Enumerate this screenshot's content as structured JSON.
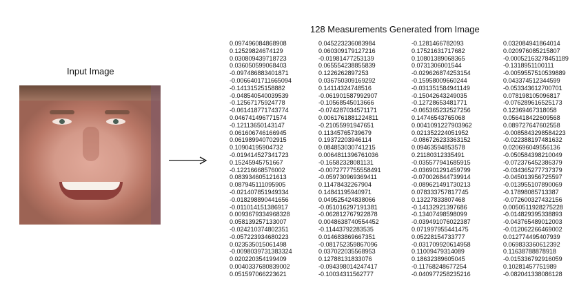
{
  "title": "128 Measurements Generated from Image",
  "input_label": "Input Image",
  "columns": [
    [
      "0.097496084868908",
      "0.12529824674129",
      "0.030809439718723",
      "0.036050599068403",
      "-0.097486883401871",
      "-0.0066401711665094",
      "-0.14131525158882",
      "-0.048540540039539",
      "-0.12567175924778",
      "-0.061418771743774",
      "0.046741496771574",
      "-0.12113650143147",
      "0.061606746166945",
      "0.061989940702915",
      "0.10904195904732",
      "-0.019414527341723",
      "0.15245945751667",
      "-0.12216668576002",
      "0.083934605121613",
      "0.087945111095905",
      "-0.021407851949334",
      "-0.018298890441656",
      "-0.011014151386917",
      "0.0093679334968328",
      "0.058139257133007",
      "-0.024210374802351",
      "-0.057223934680223",
      "0.023535015061498",
      "-0.0098039731383324",
      "0.020220354199409",
      "0.0040337680839002",
      "0.051597066223621"
    ],
    [
      "0.045223236083984",
      "0.060309179127216",
      "-0.01981477253139",
      "0.065554238855839",
      "0.1226262897253",
      "0.036750309169292",
      "0.14114324748516",
      "-0.061901587992907",
      "-0.10568545013666",
      "-0.074287034571171",
      "0.0061761881224811",
      "-0.21055991947651",
      "0.11345765739679",
      "0.19372203946114",
      "0.084853030741215",
      "0.0064811396761036",
      "-0.16582328081131",
      "-0.0072777755558491",
      "-0.059730969369411",
      "0.11478432267904",
      "0.14841195940971",
      "0.049525424838066",
      "-0.051016297191381",
      "-0.062812767922878",
      "0.0048638740554452",
      "-0.11443792283535",
      "0.014683869667351",
      "-0.081752359867096",
      "0.037022035568953",
      "0.12788131833076",
      "-0.094398014247417",
      "-0.10034311562777"
    ],
    [
      "-0.1281466782093",
      "0.17521631717682",
      "0.10801389068365",
      "0.0731306001544",
      "-0.029626874253154",
      "-0.15958009660244",
      "-0.031351584941149",
      "-0.15042643249035",
      "-0.12728653481771",
      "-0.065365232527256",
      "0.14746543765068",
      "0.0041091227903962",
      "0.021352224051952",
      "-0.086726233363152",
      "0.09463594853578",
      "0.21180312335491",
      "-0.035577941685915",
      "-0.036901291459799",
      "-0.070026844739914",
      "-0.089621491730213",
      "0.078333757817745",
      "0.13227833807468",
      "-0.14132921397686",
      "-0.13407498598099",
      "-0.039491076022387",
      "0.071997955441475",
      "0.05228154733777",
      "-0.031709920614958",
      "0.11009479314089",
      "0.18632389605045",
      "-0.11768248677254",
      "-0.040977258235216"
    ],
    [
      "0.032084941864014",
      "0.020976085215807",
      "-0.00052163278451189",
      "-0.1318951100111",
      "-0.0059557510539889",
      "0.043374512344599",
      "-0.053343612700701",
      "0.078198105096817",
      "-0.076289616525173",
      "0.12369467318058",
      "0.056418422609568",
      "0.089727647602558",
      "-0.0085843298584223",
      "-0.022388197481632",
      "0.020696049556136",
      "-0.050584398210049",
      "-0.072376452386379",
      "-0.034365277737379",
      "-0.045013956725597",
      "-0.013955107890069",
      "-0.17898085713387",
      "-0.072600327432156",
      "0.0050511928275228",
      "-0.014829395338893",
      "-0.043765489012003",
      "-0.012062266469002",
      "0.012774495407939",
      "0.069833360612392",
      "0.11638788878918",
      "-0.015336792916059",
      "0.10281457751989",
      "-0.082041338086128"
    ]
  ]
}
